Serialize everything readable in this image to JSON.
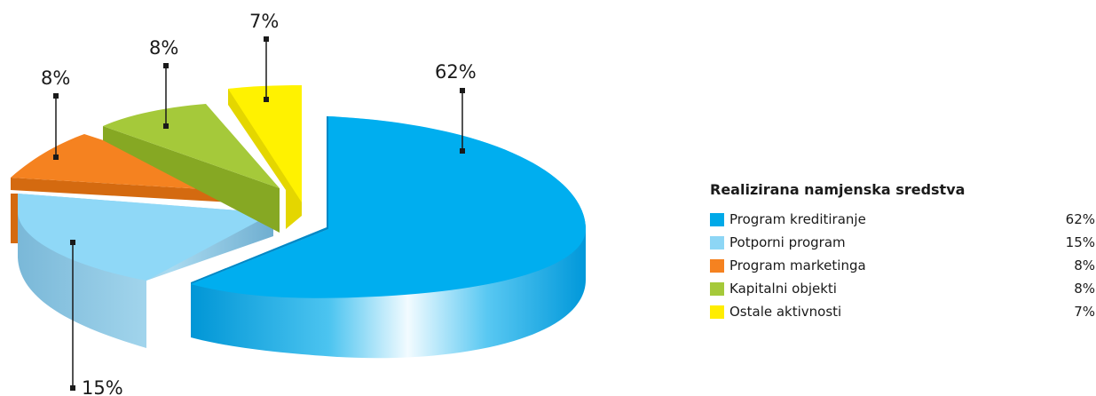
{
  "chart_data": {
    "type": "pie",
    "title": "Realizirana namjenska sredstva",
    "slices": [
      {
        "label": "Program kreditiranje",
        "value": 62,
        "display": "62%",
        "color": "#00a9e8"
      },
      {
        "label": "Potporni program",
        "value": 15,
        "display": "15%",
        "color": "#8dd6f5"
      },
      {
        "label": "Program marketinga",
        "value": 8,
        "display": "8%",
        "color": "#f58220"
      },
      {
        "label": "Kapitalni objekti",
        "value": 8,
        "display": "8%",
        "color": "#a5c93a"
      },
      {
        "label": "Ostale aktivnosti",
        "value": 7,
        "display": "7%",
        "color": "#ffed00"
      }
    ],
    "legend_position": "right"
  }
}
